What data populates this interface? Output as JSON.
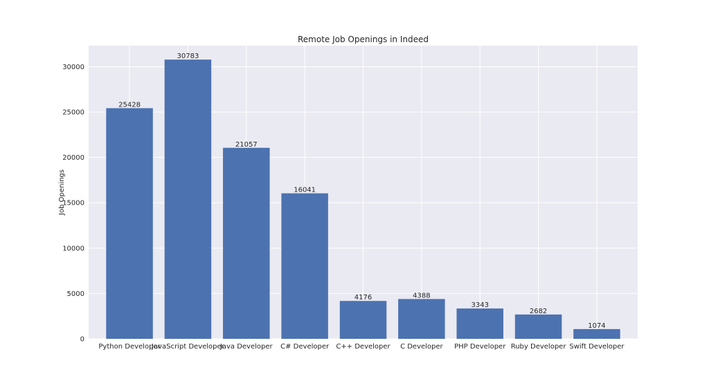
{
  "chart_data": {
    "type": "bar",
    "title": "Remote Job Openings in Indeed",
    "xlabel": "",
    "ylabel": "Job Openings",
    "categories": [
      "Python Developer",
      "JavaScript Developer",
      "Java Developer",
      "C# Developer",
      "C++ Developer",
      "C Developer",
      "PHP Developer",
      "Ruby Developer",
      "Swift Developer"
    ],
    "values": [
      25428,
      30783,
      21057,
      16041,
      4176,
      4388,
      3343,
      2682,
      1074
    ],
    "data_labels": [
      "25428",
      "30783",
      "21057",
      "16041",
      "4176",
      "4388",
      "3343",
      "2682",
      "1074"
    ],
    "ylim": [
      0,
      32321
    ],
    "yticks": [
      0,
      5000,
      10000,
      15000,
      20000,
      25000,
      30000
    ],
    "ytick_labels": [
      "0",
      "5000",
      "10000",
      "15000",
      "20000",
      "25000",
      "30000"
    ],
    "grid": true,
    "colors": {
      "bar": "#4c72b0",
      "background": "#eaeaf2",
      "grid": "#ffffff"
    }
  }
}
